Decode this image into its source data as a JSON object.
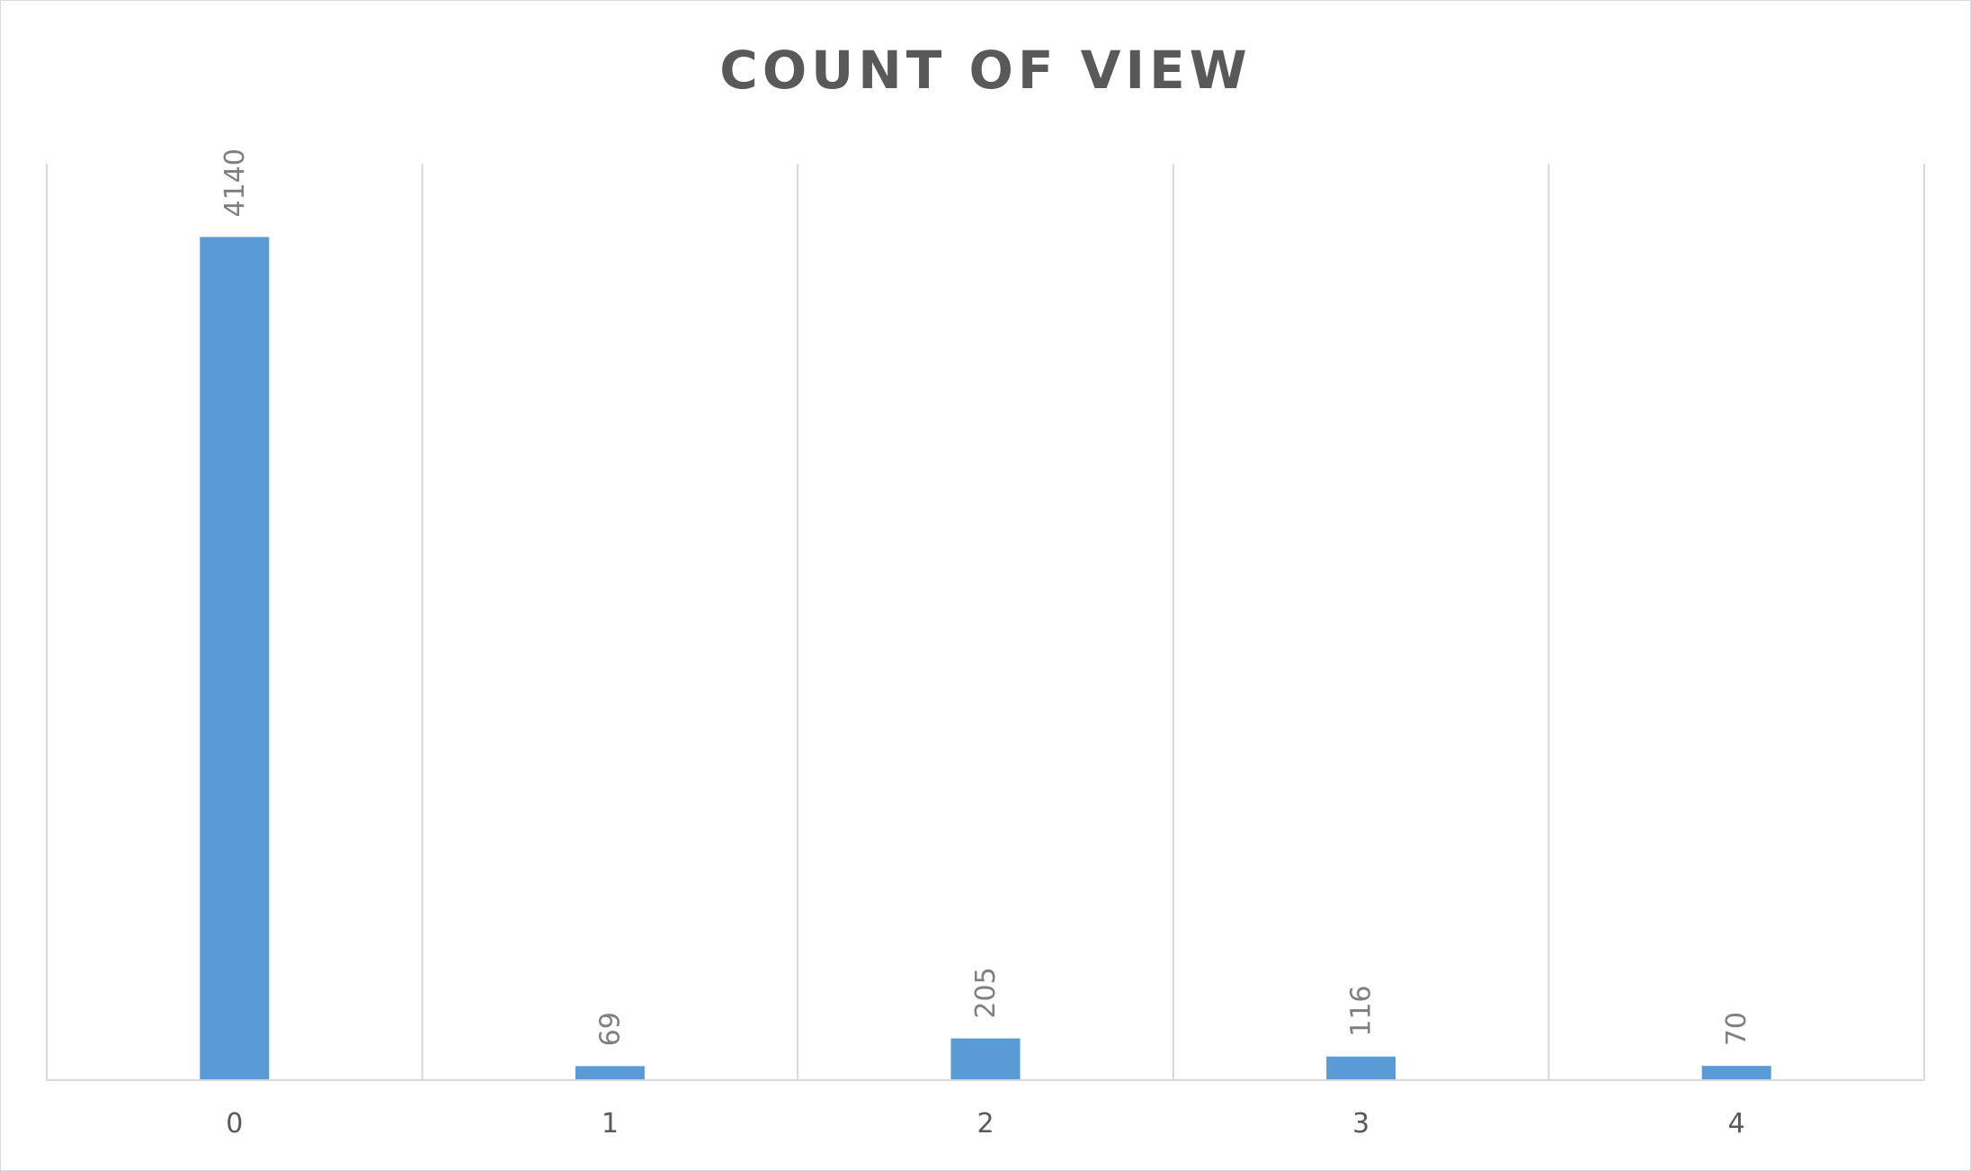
{
  "chart_data": {
    "type": "bar",
    "title": "COUNT OF VIEW",
    "categories": [
      "0",
      "1",
      "2",
      "3",
      "4"
    ],
    "values": [
      4140,
      69,
      205,
      116,
      70
    ],
    "data_labels": [
      "4140",
      "69",
      "205",
      "116",
      "70"
    ],
    "xlabel": "",
    "ylabel": "",
    "ylim": [
      0,
      4500
    ],
    "grid": "vertical",
    "legend": "none",
    "colors": {
      "bar": "#5b9bd5",
      "grid": "#d9d9d9",
      "axis": "#d9d9d9"
    }
  }
}
